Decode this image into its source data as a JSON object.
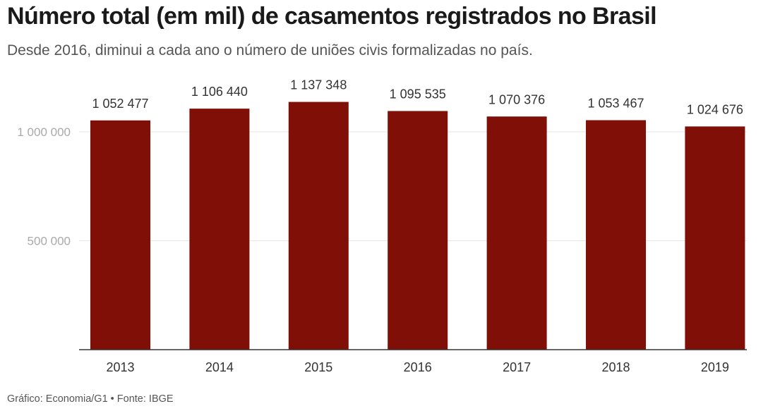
{
  "header": {
    "title": "Número total (em mil) de casamentos registrados no Brasil",
    "subtitle": "Desde 2016, diminui a cada ano o número de uniões civis formalizadas no país."
  },
  "footer": {
    "credit": "Gráfico: Economia/G1 • Fonte: IBGE"
  },
  "colors": {
    "bar": "#7f0f07",
    "grid": "#e6e6e6",
    "axis": "#333333"
  },
  "chart_data": {
    "type": "bar",
    "title": "Número total (em mil) de casamentos registrados no Brasil",
    "subtitle": "Desde 2016, diminui a cada ano o número de uniões civis formalizadas no país.",
    "categories": [
      "2013",
      "2014",
      "2015",
      "2016",
      "2017",
      "2018",
      "2019"
    ],
    "values": [
      1052477,
      1106440,
      1137348,
      1095535,
      1070376,
      1053467,
      1024676
    ],
    "value_labels": [
      "1 052 477",
      "1 106 440",
      "1 137 348",
      "1 095 535",
      "1 070 376",
      "1 053 467",
      "1 024 676"
    ],
    "yticks": [
      500000,
      1000000
    ],
    "ytick_labels": [
      "500 000",
      "1 000 000"
    ],
    "ylim": [
      0,
      1150000
    ],
    "grid": true,
    "legend": "none"
  }
}
